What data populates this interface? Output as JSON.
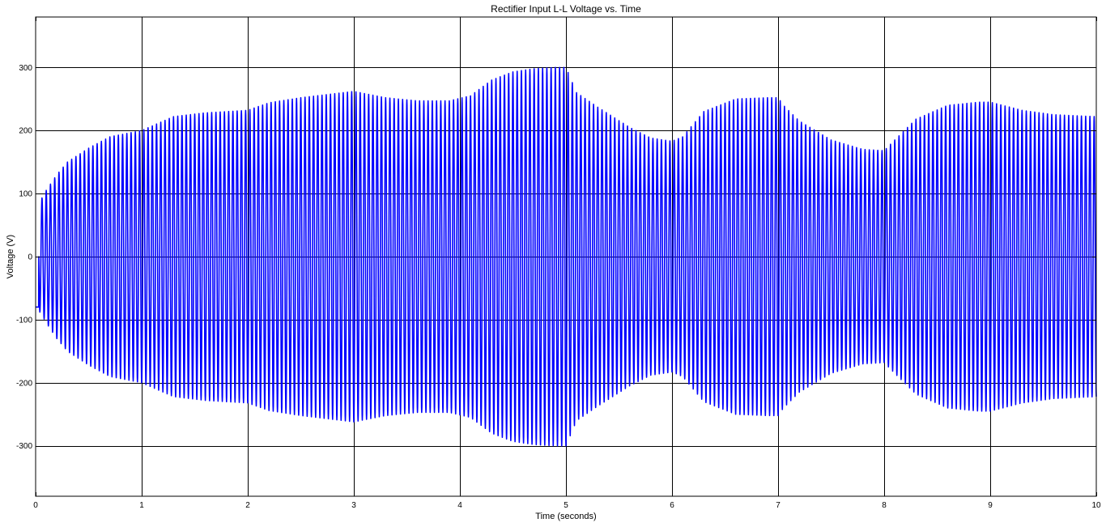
{
  "chart_data": {
    "type": "line",
    "title": "Rectifier Input L-L Voltage vs. Time",
    "xlabel": "Time (seconds)",
    "ylabel": "Voltage (V)",
    "xlim": [
      0,
      10
    ],
    "ylim": [
      -380,
      380
    ],
    "xticks": [
      0,
      1,
      2,
      3,
      4,
      5,
      6,
      7,
      8,
      9,
      10
    ],
    "yticks": [
      -300,
      -200,
      -100,
      0,
      100,
      200,
      300
    ],
    "grid": true,
    "series": [
      {
        "color": "#0000ff",
        "style": "oscillating signal drawn as dense vertical strokes between +envelope and -envelope",
        "envelope": {
          "t": [
            0,
            0.05,
            0.1,
            0.2,
            0.3,
            0.5,
            0.7,
            1.0,
            1.3,
            1.6,
            2.0,
            2.2,
            2.5,
            2.8,
            3.0,
            3.3,
            3.6,
            3.9,
            4.1,
            4.3,
            4.5,
            4.7,
            4.9,
            5.0,
            5.05,
            5.1,
            5.3,
            5.6,
            5.8,
            6.0,
            6.1,
            6.3,
            6.6,
            6.9,
            7.0,
            7.05,
            7.2,
            7.5,
            7.8,
            8.0,
            8.1,
            8.3,
            8.6,
            8.9,
            9.0,
            9.3,
            9.6,
            10.0
          ],
          "amplitude": [
            80,
            90,
            105,
            130,
            150,
            172,
            190,
            200,
            222,
            228,
            232,
            244,
            252,
            258,
            262,
            252,
            247,
            247,
            255,
            280,
            293,
            298,
            300,
            300,
            280,
            260,
            237,
            205,
            188,
            183,
            190,
            230,
            250,
            252,
            252,
            240,
            215,
            185,
            170,
            168,
            185,
            218,
            240,
            245,
            245,
            232,
            225,
            222
          ]
        },
        "cycle_frequency_hz": 25,
        "initial_offset": -80
      }
    ]
  }
}
